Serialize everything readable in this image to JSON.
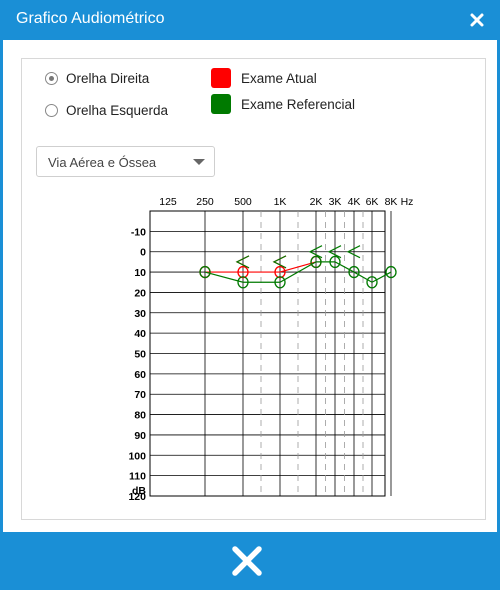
{
  "window": {
    "title": "Grafico Audiométrico"
  },
  "ear_selector": {
    "options": [
      {
        "label": "Orelha Direita",
        "checked": true
      },
      {
        "label": "Orelha Esquerda",
        "checked": false
      }
    ]
  },
  "legend": {
    "items": [
      {
        "label": "Exame Atual",
        "color": "#ff0000"
      },
      {
        "label": "Exame Referencial",
        "color": "#007a00"
      }
    ]
  },
  "via_select": {
    "selected": "Via Aérea e Óssea"
  },
  "chart_data": {
    "type": "line",
    "x_ticks": [
      "125",
      "250",
      "500",
      "1K",
      "2K",
      "3K",
      "4K",
      "6K",
      "8K"
    ],
    "x_unit": "Hz",
    "y_ticks": [
      "-10",
      "0",
      "10",
      "20",
      "30",
      "40",
      "50",
      "60",
      "70",
      "80",
      "90",
      "100",
      "110",
      "120"
    ],
    "y_unit": "dB",
    "ylim": [
      -10,
      120
    ],
    "y_reversed": true,
    "grid": true,
    "series": [
      {
        "name": "Exame Atual",
        "color": "#ff0000",
        "air": [
          {
            "x": "250",
            "y": 10
          },
          {
            "x": "500",
            "y": 10
          },
          {
            "x": "1K",
            "y": 10
          },
          {
            "x": "2K",
            "y": 5
          }
        ],
        "bone": [
          {
            "x": "500",
            "y": 5
          },
          {
            "x": "1K",
            "y": 5
          }
        ]
      },
      {
        "name": "Exame Referencial",
        "color": "#007a00",
        "air": [
          {
            "x": "250",
            "y": 10
          },
          {
            "x": "500",
            "y": 15
          },
          {
            "x": "1K",
            "y": 15
          },
          {
            "x": "2K",
            "y": 5
          },
          {
            "x": "3K",
            "y": 5
          },
          {
            "x": "4K",
            "y": 10
          },
          {
            "x": "6K",
            "y": 15
          },
          {
            "x": "8K",
            "y": 10
          }
        ],
        "bone": [
          {
            "x": "500",
            "y": 5
          },
          {
            "x": "1K",
            "y": 5
          },
          {
            "x": "2K",
            "y": 0
          },
          {
            "x": "3K",
            "y": 0
          },
          {
            "x": "4K",
            "y": 0
          }
        ]
      }
    ]
  }
}
